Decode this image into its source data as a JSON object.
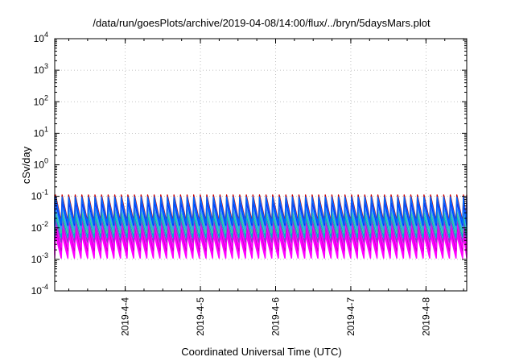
{
  "chart_data": {
    "type": "line",
    "title": "/data/run/goesPlots/archive/2019-04-08/14:00/flux/../bryn/5daysMars.plot",
    "xlabel": "Coordinated Universal Time (UTC)",
    "ylabel": "cSv/day",
    "yscale": "log",
    "ylim": [
      0.0001,
      10000
    ],
    "xlim": [
      "2019-04-03 01:30",
      "2019-04-08 13:00"
    ],
    "grid": true,
    "x_ticks": [
      "2019-4-4",
      "2019-4-5",
      "2019-4-6",
      "2019-4-7",
      "2019-4-8"
    ],
    "y_ticks": [
      {
        "base": "10",
        "exp": "-4"
      },
      {
        "base": "10",
        "exp": "-3"
      },
      {
        "base": "10",
        "exp": "-2"
      },
      {
        "base": "10",
        "exp": "-1"
      },
      {
        "base": "10",
        "exp": "0"
      },
      {
        "base": "10",
        "exp": "1"
      },
      {
        "base": "10",
        "exp": "2"
      },
      {
        "base": "10",
        "exp": "3"
      },
      {
        "base": "10",
        "exp": "4"
      }
    ],
    "sawtooth_period_hours": 2.1,
    "series": [
      {
        "color": "#ff00ff",
        "peak": 0.006,
        "trough": 0.0011
      },
      {
        "color": "#ff00ff",
        "peak": 0.008,
        "trough": 0.0014
      },
      {
        "color": "#cc00cc",
        "peak": 0.011,
        "trough": 0.0019
      },
      {
        "color": "#ff00ff",
        "peak": 0.014,
        "trough": 0.0024
      },
      {
        "color": "#9933cc",
        "peak": 0.018,
        "trough": 0.0035
      },
      {
        "color": "#00aacc",
        "peak": 0.024,
        "trough": 0.005
      },
      {
        "color": "#33cc99",
        "peak": 0.032,
        "trough": 0.007
      },
      {
        "color": "#3399ff",
        "peak": 0.045,
        "trough": 0.009
      },
      {
        "color": "#0033ff",
        "peak": 0.065,
        "trough": 0.012
      },
      {
        "color": "#cc0000",
        "peak": 0.11,
        "trough": 0.016
      },
      {
        "color": "#0066ff",
        "peak": 0.095,
        "trough": 0.014
      }
    ]
  }
}
